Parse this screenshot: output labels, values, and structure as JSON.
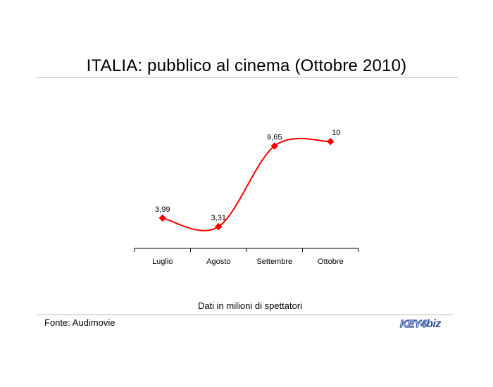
{
  "title": "ITALIA: pubblico al cinema (Ottobre 2010)",
  "note": "Dati in milioni di spettatori",
  "source": "Fonte: Audimovie",
  "logo": {
    "key": "KEY4",
    "biz": "biz",
    "color": "#2c4aa0"
  },
  "chart_data": {
    "type": "line",
    "title": "ITALIA: pubblico al cinema (Ottobre 2010)",
    "categories": [
      "Luglio",
      "Agosto",
      "Settembre",
      "Ottobre"
    ],
    "series": [
      {
        "values": [
          3.99,
          3.31,
          9.65,
          10
        ],
        "labels": [
          "3,99",
          "3,31",
          "9,65",
          "10"
        ],
        "color": "#ff0000"
      }
    ],
    "xlabel": "",
    "ylabel": "",
    "grid": false,
    "smooth": true
  }
}
